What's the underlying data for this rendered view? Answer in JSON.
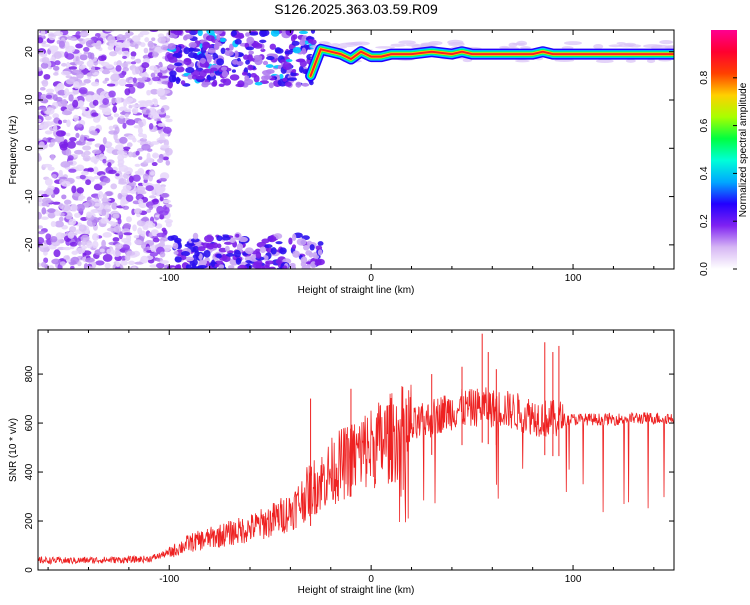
{
  "title": "S126.2025.363.03.59.R09",
  "chart_data": [
    {
      "type": "heatmap",
      "xlabel": "Height of straight line (km)",
      "ylabel": "Frequency (Hz)",
      "xlim": [
        -165,
        150
      ],
      "ylim": [
        -25,
        24.5
      ],
      "xticks": [
        -100,
        0,
        100
      ],
      "yticks": [
        -20,
        -10,
        0,
        10,
        20
      ],
      "colorbar": {
        "label": "Normalized spectral amplitude",
        "ticks": [
          0.0,
          0.2,
          0.4,
          0.6,
          0.8
        ],
        "range": [
          0,
          1
        ],
        "colormap": [
          "#ffffff",
          "#d6b6f4",
          "#7f22f2",
          "#2200ff",
          "#00a8ff",
          "#00ffd8",
          "#00ff40",
          "#a8ff00",
          "#ffd000",
          "#ff4000",
          "#ff0030",
          "#ff0090"
        ]
      },
      "tone": {
        "x": [
          -30,
          -25,
          -20,
          -15,
          -10,
          -5,
          0,
          5,
          10,
          20,
          30,
          40,
          45,
          50,
          60,
          70,
          80,
          85,
          90,
          100,
          120,
          150
        ],
        "frequency": [
          15,
          20.5,
          20,
          19.5,
          18.5,
          20,
          19,
          19,
          19.5,
          19.5,
          20,
          19.5,
          20,
          19.5,
          19.5,
          19.5,
          19.5,
          20,
          19.5,
          19.5,
          19.5,
          19.5
        ]
      }
    },
    {
      "type": "line",
      "xlabel": "Height of straight line (km)",
      "ylabel": "SNR (10 * v/v)",
      "xlim": [
        -165,
        150
      ],
      "ylim": [
        0,
        980
      ],
      "xticks": [
        -100,
        0,
        100
      ],
      "yticks": [
        0,
        200,
        400,
        600,
        800
      ],
      "color": "#ee2222",
      "x": [
        -165,
        -150,
        -140,
        -120,
        -110,
        -100,
        -90,
        -80,
        -70,
        -60,
        -50,
        -40,
        -35,
        -30,
        -25,
        -20,
        -15,
        -10,
        -5,
        0,
        5,
        10,
        15,
        20,
        25,
        30,
        35,
        40,
        45,
        50,
        55,
        60,
        65,
        70,
        75,
        80,
        85,
        90,
        95,
        100,
        110,
        120,
        130,
        140,
        150
      ],
      "y": [
        40,
        38,
        40,
        42,
        45,
        70,
        110,
        130,
        150,
        170,
        200,
        240,
        280,
        330,
        360,
        400,
        430,
        450,
        480,
        500,
        520,
        540,
        560,
        580,
        600,
        620,
        640,
        650,
        660,
        660,
        670,
        660,
        660,
        650,
        640,
        630,
        620,
        615,
        615,
        615,
        615,
        615,
        620,
        620,
        620
      ],
      "spikes": [
        {
          "x": 55,
          "y": 965
        },
        {
          "x": 58,
          "y": 890
        },
        {
          "x": 86,
          "y": 930
        },
        {
          "x": 90,
          "y": 890
        },
        {
          "x": 93,
          "y": 915
        },
        {
          "x": 45,
          "y": 830
        },
        {
          "x": 62,
          "y": 820
        },
        {
          "x": 30,
          "y": 800
        },
        {
          "x": -10,
          "y": 740
        },
        {
          "x": -30,
          "y": 700
        }
      ]
    }
  ]
}
